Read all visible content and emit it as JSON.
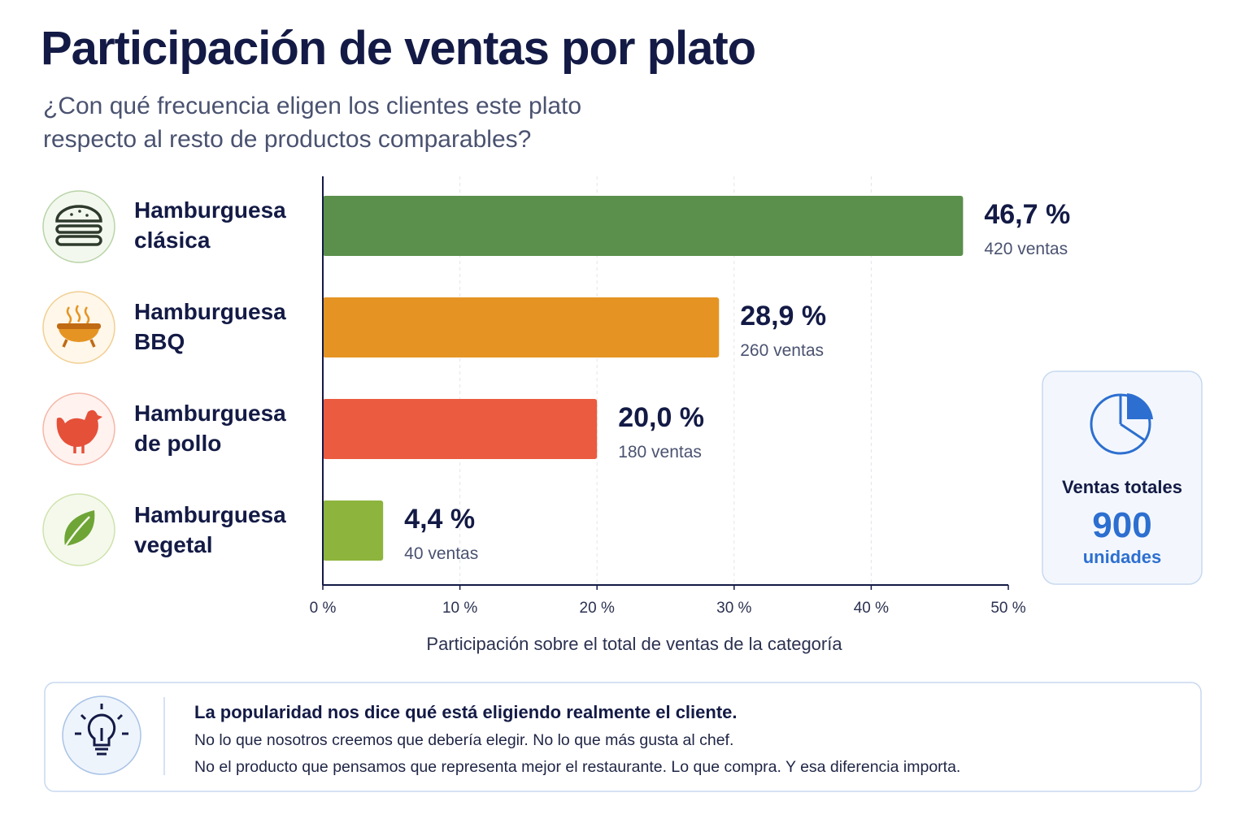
{
  "chart_data": {
    "type": "bar",
    "orientation": "horizontal",
    "title": "Participación de ventas por plato",
    "subtitle": "¿Con qué frecuencia eligen los clientes este plato respecto al resto de productos comparables?",
    "categories": [
      "Hamburguesa clásica",
      "Hamburguesa BBQ",
      "Hamburguesa de pollo",
      "Hamburguesa vegetal"
    ],
    "values": [
      46.7,
      28.9,
      20.0,
      4.4
    ],
    "value_labels": [
      "46,7 %",
      "28,9 %",
      "20,0 %",
      "4,4 %"
    ],
    "colors": [
      "#5a8f4c",
      "#e59424",
      "#ea5b40",
      "#8db43c"
    ],
    "sales": {
      "values": [
        420,
        260,
        180,
        40
      ],
      "value_labels": [
        "420 ventas",
        "260 ventas",
        "180 ventas",
        "40 ventas"
      ]
    },
    "xlim": [
      0,
      50
    ],
    "xticks": [
      {
        "value": 0,
        "label": "0 %"
      },
      {
        "value": 10,
        "label": "10 %"
      },
      {
        "value": 20,
        "label": "20 %"
      },
      {
        "value": 30,
        "label": "30 %"
      },
      {
        "value": 40,
        "label": "40 %"
      },
      {
        "value": 50,
        "label": "50 %"
      }
    ],
    "xlabel": "Participación sobre el total de ventas de la categoría",
    "grid": true,
    "total": {
      "label": "Ventas totales",
      "value": 900,
      "unit": "unidades"
    }
  },
  "note": {
    "heading": "La popularidad nos dice qué está eligiendo realmente el cliente.",
    "lines": [
      "No lo que nosotros creemos que debería elegir. No lo que más gusta al chef.",
      "No el producto que pensamos que representa mejor el restaurante. Lo que compra. Y esa diferencia importa."
    ]
  }
}
